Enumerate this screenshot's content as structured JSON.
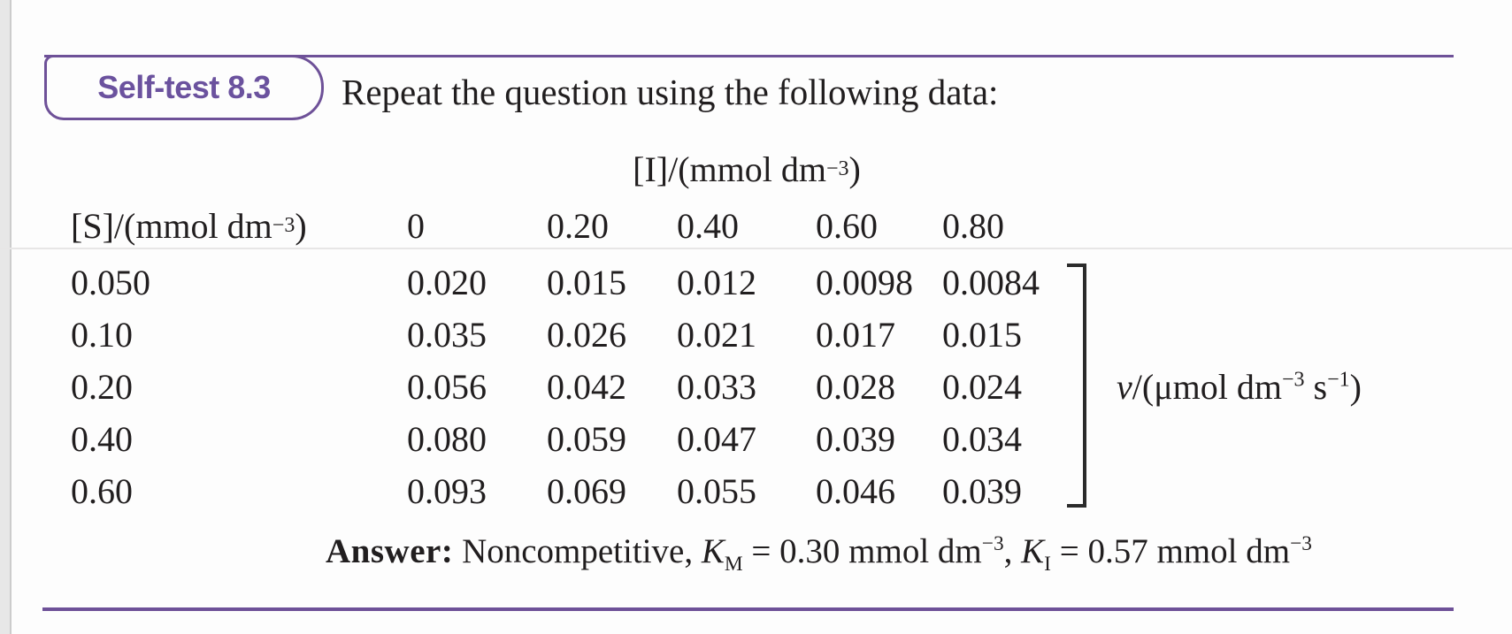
{
  "colors": {
    "accent_purple": "#6e5198",
    "badge_text_purple": "#6b529e",
    "body_text": "#211e1f",
    "faint_rule_gray": "#e7e6e6",
    "page_edge_gray": "#e7e7e7"
  },
  "badge": {
    "label": "Self-test 8.3"
  },
  "intro": {
    "text": "Repeat the question using the following data:"
  },
  "table": {
    "group_header": {
      "prefix": "[I]/(mmol dm",
      "sup": "−3",
      "suffix": ")"
    },
    "row_header": {
      "prefix": "[S]/(mmol dm",
      "sup": "−3",
      "suffix": ")"
    },
    "col_headers": [
      "0",
      "0.20",
      "0.40",
      "0.60",
      "0.80"
    ],
    "rows": [
      {
        "s": "0.050",
        "values": [
          "0.020",
          "0.015",
          "0.012",
          "0.0098",
          "0.0084"
        ]
      },
      {
        "s": "0.10",
        "values": [
          "0.035",
          "0.026",
          "0.021",
          "0.017",
          "0.015"
        ]
      },
      {
        "s": "0.20",
        "values": [
          "0.056",
          "0.042",
          "0.033",
          "0.028",
          "0.024"
        ]
      },
      {
        "s": "0.40",
        "values": [
          "0.080",
          "0.059",
          "0.047",
          "0.039",
          "0.034"
        ]
      },
      {
        "s": "0.60",
        "values": [
          "0.093",
          "0.069",
          "0.055",
          "0.046",
          "0.039"
        ]
      }
    ],
    "v_label": {
      "symbol": "v",
      "mid": "/(μmol dm",
      "sup1": "−3",
      "mid2": " s",
      "sup2": "−1",
      "suffix": ")"
    }
  },
  "answer": {
    "label": "Answer:",
    "lead": " Noncompetitive, ",
    "k1": "K",
    "k1_sub": "M",
    "k1_eq": " = 0.30 mmol dm",
    "k1_sup": "−3",
    "comma": ", ",
    "k2": "K",
    "k2_sub": "I",
    "k2_eq": " = 0.57 mmol dm",
    "k2_sup": "−3"
  }
}
